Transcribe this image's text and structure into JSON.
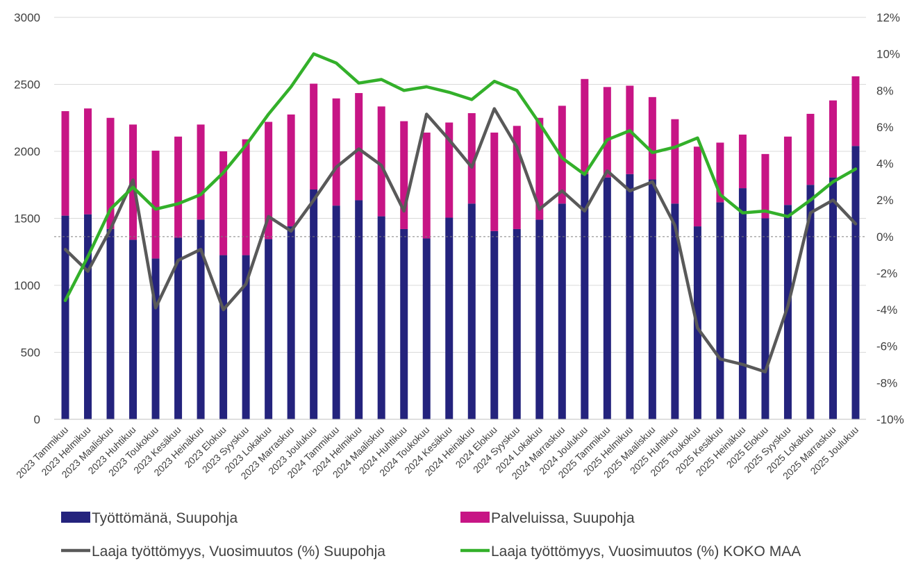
{
  "chart_data": {
    "type": "bar",
    "categories": [
      "2023 Tammikuu",
      "2023 Helmikuu",
      "2023 Maaliskuu",
      "2023 Huhtikuu",
      "2023 Toukokuu",
      "2023 Kesäkuu",
      "2023 Heinäkuu",
      "2023 Elokuu",
      "2023 Syyskuu",
      "2023 Lokakuu",
      "2023 Marraskuu",
      "2023 Joulukuu",
      "2024 Tammikuu",
      "2024 Helmikuu",
      "2024 Maaliskuu",
      "2024 Huhtikuu",
      "2024 Toukokuu",
      "2024 Kesäkuu",
      "2024 Heinäkuu",
      "2024 Elokuu",
      "2024 Syyskuu",
      "2024 Lokakuu",
      "2024 Marraskuu",
      "2024 Joulukuu",
      "2025 Tammikuu",
      "2025 Helmikuu",
      "2025 Maaliskuu",
      "2025 Huhtikuu",
      "2025 Toukokuu",
      "2025 Kesäkuu",
      "2025 Heinäkuu",
      "2025 Elokuu",
      "2025 Syyskuu",
      "2025 Lokakuu",
      "2025 Marraskuu",
      "2025 Joulukuu"
    ],
    "stacked": true,
    "series": [
      {
        "name": "Työttömänä, Suupohja",
        "type": "bar",
        "axis": "left",
        "color": "#24237d",
        "values": [
          1520,
          1530,
          1420,
          1340,
          1200,
          1355,
          1490,
          1225,
          1225,
          1345,
          1440,
          1715,
          1595,
          1635,
          1515,
          1420,
          1350,
          1505,
          1610,
          1405,
          1420,
          1490,
          1610,
          1830,
          1805,
          1830,
          1790,
          1610,
          1440,
          1620,
          1725,
          1500,
          1600,
          1750,
          1805,
          2040
        ]
      },
      {
        "name": "Palveluissa, Suupohja",
        "type": "bar",
        "axis": "left",
        "color": "#c71585",
        "values": [
          780,
          790,
          830,
          860,
          805,
          755,
          710,
          775,
          865,
          875,
          835,
          790,
          800,
          800,
          820,
          805,
          790,
          710,
          675,
          735,
          770,
          760,
          730,
          710,
          675,
          660,
          615,
          630,
          595,
          445,
          400,
          480,
          510,
          530,
          575,
          520
        ]
      },
      {
        "name": "Laaja työttömyys, Vuosimuutos (%) Suupohja",
        "type": "line",
        "axis": "right",
        "color": "#595959",
        "values": [
          -0.7,
          -1.9,
          0.4,
          3.1,
          -3.9,
          -1.3,
          -0.7,
          -4.0,
          -2.6,
          1.1,
          0.3,
          2.0,
          3.8,
          4.8,
          3.9,
          1.4,
          6.7,
          5.3,
          3.8,
          7.0,
          4.9,
          1.5,
          2.5,
          1.4,
          3.6,
          2.5,
          3.0,
          0.6,
          -5.0,
          -6.7,
          -7.0,
          -7.4,
          -3.8,
          1.3,
          2.0,
          0.7
        ]
      },
      {
        "name": "Laaja työttömyys, Vuosimuutos (%)  KOKO MAA",
        "type": "line",
        "axis": "right",
        "color": "#33b02a",
        "values": [
          -3.5,
          -1.1,
          1.5,
          2.7,
          1.5,
          1.8,
          2.3,
          3.5,
          5.0,
          6.7,
          8.2,
          10.0,
          9.5,
          8.4,
          8.6,
          8.0,
          8.2,
          7.9,
          7.5,
          8.5,
          8.0,
          6.2,
          4.3,
          3.4,
          5.3,
          5.8,
          4.6,
          4.9,
          5.4,
          2.3,
          1.3,
          1.4,
          1.1,
          2.0,
          3.0,
          3.7
        ]
      }
    ],
    "y_left": {
      "min": 0,
      "max": 3000,
      "ticks": [
        "0",
        "500",
        "1000",
        "1500",
        "2000",
        "2500",
        "3000"
      ]
    },
    "y_right": {
      "min": -10,
      "max": 12,
      "ticks": [
        "-10%",
        "-8%",
        "-6%",
        "-4%",
        "-2%",
        "0%",
        "2%",
        "4%",
        "6%",
        "8%",
        "10%",
        "12%"
      ]
    },
    "zero_line_right": 0,
    "grid": true,
    "legend_position": "bottom",
    "title": "",
    "xlabel": "",
    "ylabel": ""
  }
}
